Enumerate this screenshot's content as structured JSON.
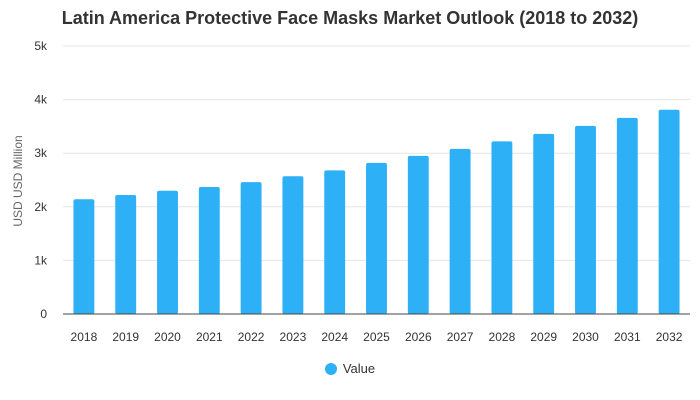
{
  "chart_data": {
    "type": "bar",
    "title": "Latin America Protective Face Masks Market Outlook (2018 to 2032)",
    "xlabel": "",
    "ylabel": "USD USD Million",
    "categories": [
      "2018",
      "2019",
      "2020",
      "2021",
      "2022",
      "2023",
      "2024",
      "2025",
      "2026",
      "2027",
      "2028",
      "2029",
      "2030",
      "2031",
      "2032"
    ],
    "series": [
      {
        "name": "Value",
        "color": "#2db0f5",
        "values": [
          2140,
          2220,
          2300,
          2370,
          2460,
          2570,
          2680,
          2820,
          2950,
          3080,
          3220,
          3360,
          3510,
          3660,
          3810
        ]
      }
    ],
    "ylim": [
      0,
      5000
    ],
    "yticks": [
      0,
      1000,
      2000,
      3000,
      4000,
      5000
    ],
    "ytick_labels": [
      "0",
      "1k",
      "2k",
      "3k",
      "4k",
      "5k"
    ],
    "grid": true,
    "legend_position": "bottom-center"
  }
}
